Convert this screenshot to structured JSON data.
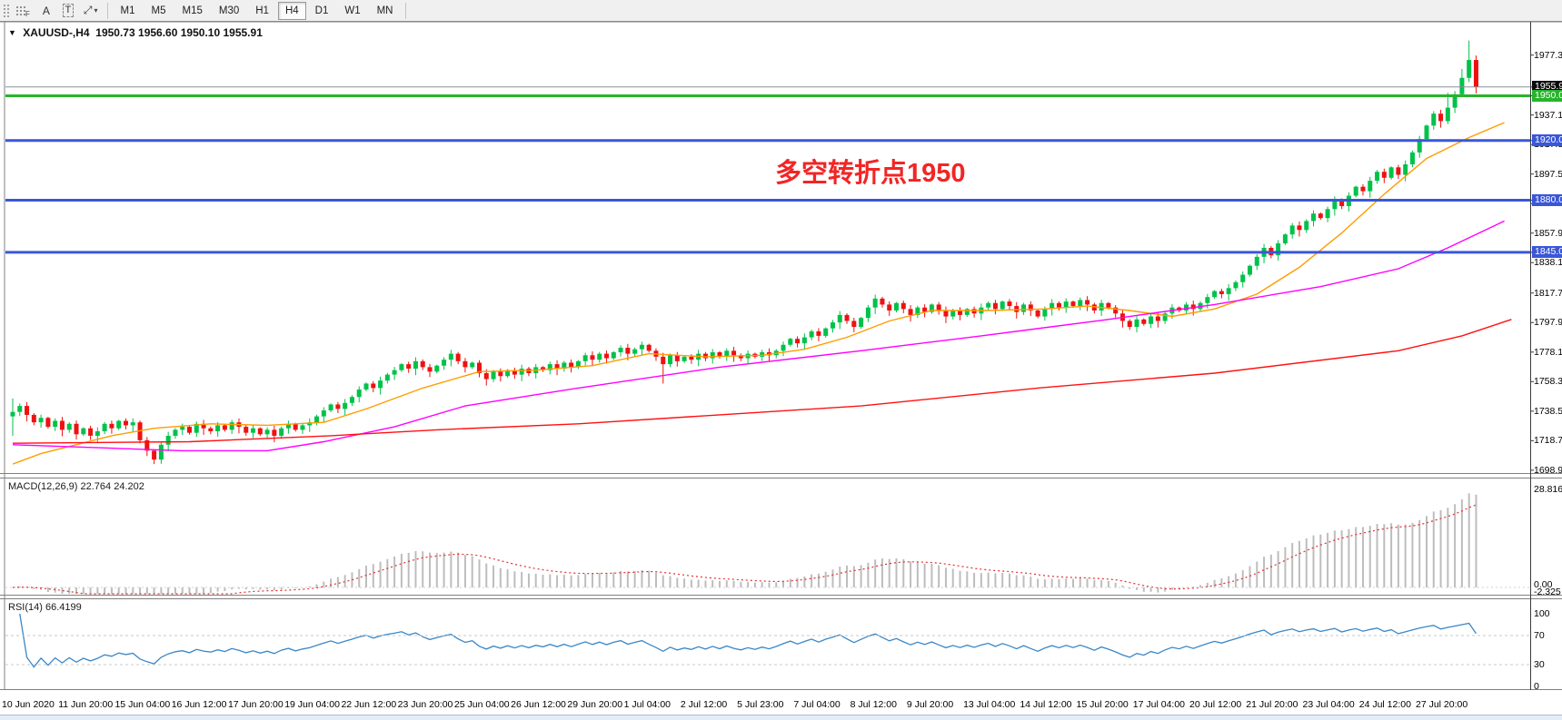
{
  "toolbar": {
    "tools": [
      {
        "name": "indicators-grid-button",
        "glyph": "grid",
        "sub": "F"
      },
      {
        "name": "cursor-button",
        "glyph": "A"
      },
      {
        "name": "text-label-button",
        "glyph": "T"
      },
      {
        "name": "drawing-tools-button",
        "glyph": "arrows"
      }
    ],
    "timeframes": [
      "M1",
      "M5",
      "M15",
      "M30",
      "H1",
      "H4",
      "D1",
      "W1",
      "MN"
    ],
    "active_timeframe": "H4"
  },
  "title": {
    "symbol": "XAUUSD-,H4",
    "open": "1950.73",
    "high": "1956.60",
    "low": "1950.10",
    "close": "1955.91"
  },
  "annotation": {
    "text": "多空转折点1950",
    "color": "#f22525"
  },
  "chart_data": {
    "type": "candlestick",
    "symbol": "XAUUSD",
    "timeframe": "H4",
    "title": "XAUUSD-,H4 1950.73 1956.60 1950.10 1955.91",
    "price_domain": [
      1697,
      1999
    ],
    "colors": {
      "bull": "#00c24a",
      "bear": "#ee1111",
      "ma_fast": "#ff9c00",
      "ma_mid": "#ff00ff",
      "ma_slow": "#ff1111",
      "level_green": "#27b32c",
      "level_blue": "#3a57d8",
      "last_price_line": "#8a9099",
      "macd_histogram": "#bdbdbd",
      "macd_signal": "#e03030",
      "rsi_line": "#3a87c8",
      "rsi_levels": "#c8c8c8"
    },
    "first_open": 1735,
    "closes": [
      1738,
      1742,
      1736,
      1731,
      1734,
      1728,
      1732,
      1726,
      1730,
      1723,
      1727,
      1722,
      1725,
      1730,
      1727,
      1732,
      1729,
      1731,
      1719,
      1712,
      1706,
      1716,
      1722,
      1726,
      1728,
      1724,
      1730,
      1727,
      1725,
      1729,
      1726,
      1731,
      1728,
      1724,
      1727,
      1723,
      1726,
      1722,
      1727,
      1730,
      1726,
      1729,
      1731,
      1735,
      1739,
      1743,
      1740,
      1744,
      1748,
      1753,
      1757,
      1754,
      1759,
      1763,
      1766,
      1770,
      1767,
      1772,
      1768,
      1765,
      1769,
      1773,
      1777,
      1772,
      1768,
      1771,
      1764,
      1760,
      1765,
      1762,
      1766,
      1763,
      1767,
      1764,
      1768,
      1766,
      1770,
      1767,
      1771,
      1768,
      1772,
      1776,
      1773,
      1777,
      1774,
      1778,
      1781,
      1777,
      1780,
      1783,
      1779,
      1775,
      1770,
      1776,
      1772,
      1775,
      1773,
      1777,
      1774,
      1778,
      1775,
      1779,
      1776,
      1774,
      1777,
      1775,
      1778,
      1776,
      1779,
      1783,
      1787,
      1784,
      1788,
      1792,
      1789,
      1794,
      1798,
      1803,
      1799,
      1795,
      1801,
      1808,
      1814,
      1810,
      1806,
      1811,
      1807,
      1803,
      1808,
      1805,
      1810,
      1806,
      1802,
      1806,
      1803,
      1807,
      1804,
      1808,
      1811,
      1807,
      1812,
      1809,
      1805,
      1810,
      1806,
      1802,
      1807,
      1811,
      1808,
      1812,
      1809,
      1813,
      1810,
      1806,
      1811,
      1808,
      1804,
      1799,
      1795,
      1800,
      1797,
      1802,
      1799,
      1804,
      1808,
      1806,
      1810,
      1807,
      1811,
      1815,
      1819,
      1817,
      1821,
      1825,
      1830,
      1836,
      1842,
      1848,
      1843,
      1851,
      1857,
      1863,
      1860,
      1866,
      1871,
      1868,
      1874,
      1880,
      1876,
      1883,
      1889,
      1886,
      1893,
      1899,
      1895,
      1902,
      1897,
      1904,
      1912,
      1921,
      1930,
      1938,
      1933,
      1942,
      1951,
      1962,
      1974,
      1956
    ],
    "wick_overrides": {
      "0": {
        "high": 1747,
        "low": 1722
      },
      "20": {
        "low": 1703
      },
      "92": {
        "low": 1757
      },
      "203": {
        "high": 1952
      },
      "205": {
        "high": 1968
      },
      "206": {
        "high": 1987
      },
      "207": {
        "high": 1977
      }
    },
    "horizontal_lines": [
      {
        "price": 1955.91,
        "style": "last-price",
        "width": 1
      },
      {
        "price": 1950.0,
        "style": "green",
        "width": 3
      },
      {
        "price": 1920.0,
        "style": "blue",
        "width": 3
      },
      {
        "price": 1880.0,
        "style": "blue",
        "width": 3
      },
      {
        "price": 1845.0,
        "style": "blue",
        "width": 3
      }
    ],
    "y_axis": {
      "ticks": [
        {
          "label": "1977.3",
          "value": 1977.3
        },
        {
          "label": "1937.1",
          "value": 1937.1
        },
        {
          "label": "1917.3",
          "value": 1917.3
        },
        {
          "label": "1897.5",
          "value": 1897.5
        },
        {
          "label": "1877.7",
          "value": 1877.7
        },
        {
          "label": "1857.9",
          "value": 1857.9
        },
        {
          "label": "1838.1",
          "value": 1838.1
        },
        {
          "label": "1817.7",
          "value": 1817.7
        },
        {
          "label": "1797.9",
          "value": 1797.9
        },
        {
          "label": "1778.1",
          "value": 1778.1
        },
        {
          "label": "1758.3",
          "value": 1758.3
        },
        {
          "label": "1738.5",
          "value": 1738.5
        },
        {
          "label": "1718.7",
          "value": 1718.7
        },
        {
          "label": "1698.9",
          "value": 1698.9
        }
      ],
      "badges": [
        {
          "label": "1955.9",
          "value": 1955.91,
          "bg": "#0a0a0a"
        },
        {
          "label": "1950.0",
          "value": 1950.0,
          "bg": "#27b32c"
        },
        {
          "label": "1920.0",
          "value": 1920.0,
          "bg": "#3a57d8"
        },
        {
          "label": "1880.0",
          "value": 1880.0,
          "bg": "#3a57d8"
        },
        {
          "label": "1845.0",
          "value": 1845.0,
          "bg": "#3a57d8"
        }
      ]
    },
    "x_axis": {
      "labels": [
        "10 Jun 2020",
        "11 Jun 20:00",
        "15 Jun 04:00",
        "16 Jun 12:00",
        "17 Jun 20:00",
        "19 Jun 04:00",
        "22 Jun 12:00",
        "23 Jun 20:00",
        "25 Jun 04:00",
        "26 Jun 12:00",
        "29 Jun 20:00",
        "1 Jul 04:00",
        "2 Jul 12:00",
        "5 Jul 23:00",
        "7 Jul 04:00",
        "8 Jul 12:00",
        "9 Jul 20:00",
        "13 Jul 04:00",
        "14 Jul 12:00",
        "15 Jul 20:00",
        "17 Jul 04:00",
        "20 Jul 12:00",
        "21 Jul 20:00",
        "23 Jul 04:00",
        "24 Jul 12:00",
        "27 Jul 20:00"
      ],
      "label_every_n_candles": 8
    },
    "moving_averages": [
      {
        "name": "ma-fast-orange",
        "color": "#ff9c00",
        "anchors": [
          [
            0,
            1703
          ],
          [
            4,
            1710
          ],
          [
            14,
            1722
          ],
          [
            20,
            1727
          ],
          [
            28,
            1730
          ],
          [
            36,
            1729
          ],
          [
            44,
            1731
          ],
          [
            50,
            1740
          ],
          [
            58,
            1754
          ],
          [
            66,
            1765
          ],
          [
            74,
            1766
          ],
          [
            82,
            1769
          ],
          [
            90,
            1777
          ],
          [
            98,
            1775
          ],
          [
            106,
            1776
          ],
          [
            112,
            1780
          ],
          [
            118,
            1788
          ],
          [
            124,
            1799
          ],
          [
            130,
            1806
          ],
          [
            138,
            1806
          ],
          [
            146,
            1807
          ],
          [
            152,
            1809
          ],
          [
            158,
            1806
          ],
          [
            164,
            1802
          ],
          [
            170,
            1807
          ],
          [
            176,
            1817
          ],
          [
            182,
            1835
          ],
          [
            188,
            1858
          ],
          [
            194,
            1884
          ],
          [
            200,
            1908
          ],
          [
            206,
            1922
          ],
          [
            211,
            1932
          ]
        ]
      },
      {
        "name": "ma-mid-magenta",
        "color": "#ff00ff",
        "anchors": [
          [
            0,
            1716
          ],
          [
            12,
            1714
          ],
          [
            24,
            1712
          ],
          [
            36,
            1712
          ],
          [
            44,
            1718
          ],
          [
            54,
            1728
          ],
          [
            64,
            1742
          ],
          [
            80,
            1754
          ],
          [
            100,
            1768
          ],
          [
            120,
            1779
          ],
          [
            137,
            1789
          ],
          [
            155,
            1800
          ],
          [
            170,
            1810
          ],
          [
            185,
            1822
          ],
          [
            196,
            1834
          ],
          [
            203,
            1848
          ],
          [
            211,
            1866
          ]
        ]
      },
      {
        "name": "ma-slow-red",
        "color": "#ff1111",
        "anchors": [
          [
            0,
            1717
          ],
          [
            25,
            1718
          ],
          [
            45,
            1722
          ],
          [
            60,
            1726
          ],
          [
            80,
            1730
          ],
          [
            100,
            1736
          ],
          [
            120,
            1742
          ],
          [
            145,
            1754
          ],
          [
            170,
            1764
          ],
          [
            196,
            1779
          ],
          [
            205,
            1789
          ],
          [
            212,
            1800
          ]
        ]
      }
    ],
    "indicators": {
      "macd": {
        "label": "MACD(12,26,9)",
        "value_main": "22.764",
        "value_signal": "24.202",
        "params": [
          12,
          26,
          9
        ],
        "axis_labels": {
          "max": "28.816",
          "zero": "0.00",
          "min": "-2.325"
        },
        "max_value": 28.816,
        "min_value": -2.325
      },
      "rsi": {
        "label": "RSI(14)",
        "value": "66.4199",
        "period": 14,
        "levels": [
          70,
          30
        ],
        "axis_labels": [
          "100",
          "70",
          "30",
          "0"
        ]
      }
    }
  }
}
